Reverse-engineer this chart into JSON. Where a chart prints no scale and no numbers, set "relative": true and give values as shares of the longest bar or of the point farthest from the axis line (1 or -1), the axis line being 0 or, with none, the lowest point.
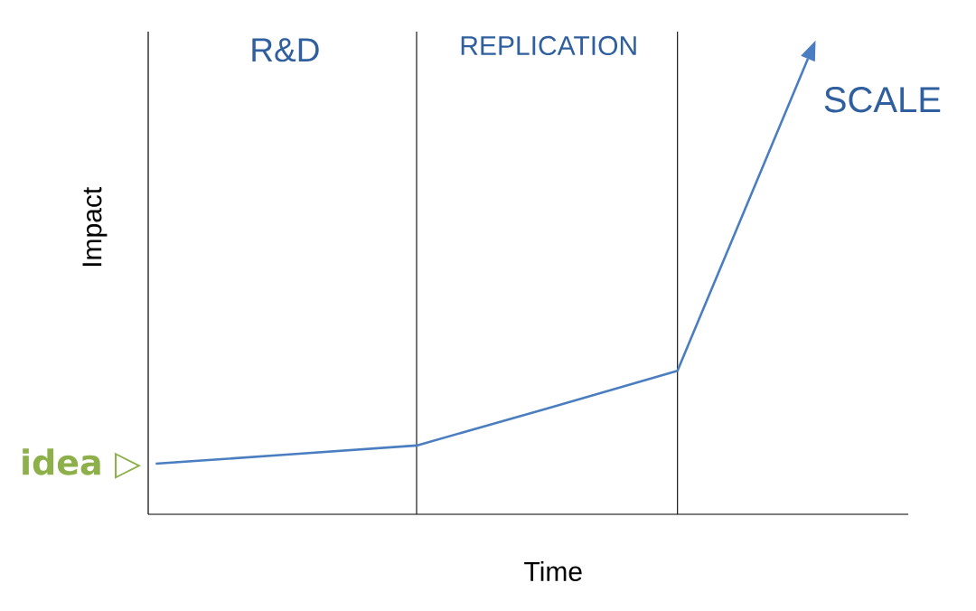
{
  "chart_data": {
    "type": "line",
    "relative": true,
    "xlabel": "Time",
    "ylabel": "Impact",
    "categories": [
      null,
      null,
      null,
      null,
      null,
      null
    ],
    "values": [
      0.111,
      0.131,
      0.151,
      0.232,
      0.315,
      1
    ],
    "color": "#4a7ec0",
    "annotations": [
      "R&D",
      "REPLICATION",
      "SCALE",
      "idea ▷"
    ]
  }
}
